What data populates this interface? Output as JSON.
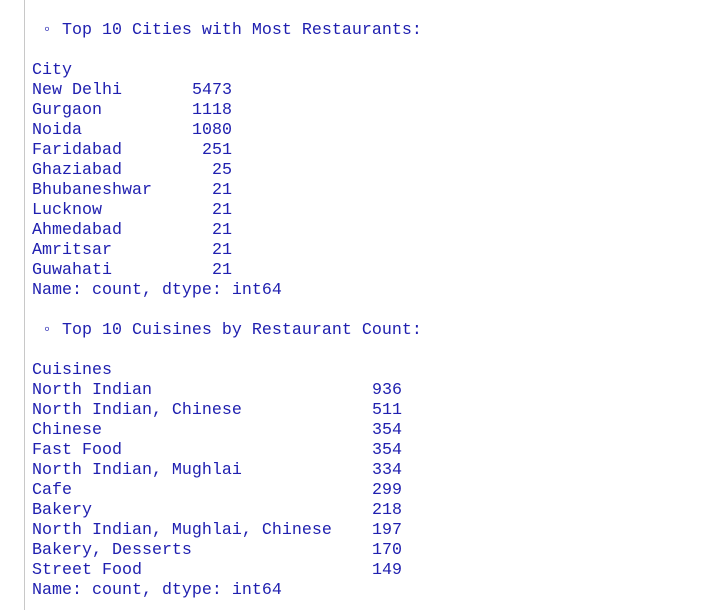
{
  "sections": [
    {
      "title": "◦ Top 10 Cities with Most Restaurants:",
      "index_name": "City",
      "rows": [
        [
          "New Delhi",
          5473
        ],
        [
          "Gurgaon",
          1118
        ],
        [
          "Noida",
          1080
        ],
        [
          "Faridabad",
          251
        ],
        [
          "Ghaziabad",
          25
        ],
        [
          "Bhubaneshwar",
          21
        ],
        [
          "Lucknow",
          21
        ],
        [
          "Ahmedabad",
          21
        ],
        [
          "Amritsar",
          21
        ],
        [
          "Guwahati",
          21
        ]
      ],
      "footer": "Name: count, dtype: int64"
    },
    {
      "title": "◦ Top 10 Cuisines by Restaurant Count:",
      "index_name": "Cuisines",
      "rows": [
        [
          "North Indian",
          936
        ],
        [
          "North Indian, Chinese",
          511
        ],
        [
          "Chinese",
          354
        ],
        [
          "Fast Food",
          354
        ],
        [
          "North Indian, Mughlai",
          334
        ],
        [
          "Cafe",
          299
        ],
        [
          "Bakery",
          218
        ],
        [
          "North Indian, Mughlai, Chinese",
          197
        ],
        [
          "Bakery, Desserts",
          170
        ],
        [
          "Street Food",
          149
        ]
      ],
      "footer": "Name: count, dtype: int64"
    }
  ]
}
